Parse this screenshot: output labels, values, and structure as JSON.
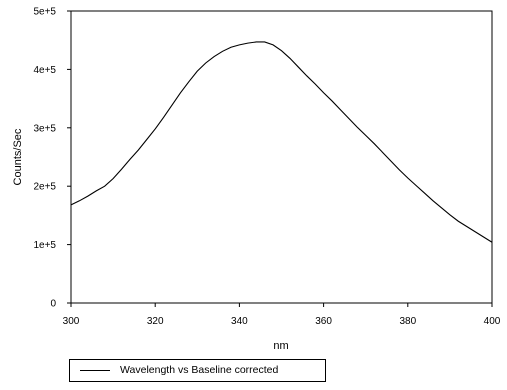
{
  "chart_data": {
    "type": "line",
    "title": "",
    "xlabel": "nm",
    "ylabel": "Counts/Sec",
    "xlim": [
      300,
      400
    ],
    "ylim": [
      0,
      500000
    ],
    "x_ticks": [
      300,
      320,
      340,
      360,
      380,
      400
    ],
    "x_tick_labels": [
      "300",
      "320",
      "340",
      "360",
      "380",
      "400"
    ],
    "y_ticks": [
      0,
      100000,
      200000,
      300000,
      400000,
      500000
    ],
    "y_tick_labels": [
      "0",
      "1e+5",
      "2e+5",
      "3e+5",
      "4e+5",
      "5e+5"
    ],
    "grid": false,
    "legend_position": "bottom-left",
    "series": [
      {
        "name": "Wavelength vs Baseline corrected",
        "color": "#000000",
        "x": [
          300,
          302,
          304,
          306,
          308,
          310,
          312,
          314,
          316,
          318,
          320,
          322,
          324,
          326,
          328,
          330,
          332,
          334,
          336,
          338,
          340,
          342,
          344,
          346,
          348,
          350,
          352,
          354,
          356,
          358,
          360,
          362,
          364,
          366,
          368,
          370,
          372,
          374,
          376,
          378,
          380,
          382,
          384,
          386,
          388,
          390,
          392,
          394,
          396,
          398,
          400
        ],
        "y": [
          168000,
          175000,
          183000,
          192000,
          200000,
          213000,
          229000,
          246000,
          262000,
          280000,
          298000,
          318000,
          339000,
          360000,
          379000,
          397000,
          411000,
          422000,
          431000,
          438000,
          442000,
          445000,
          447000,
          447000,
          442000,
          432000,
          419000,
          404000,
          389000,
          375000,
          360000,
          346000,
          331000,
          316000,
          301000,
          287000,
          273000,
          258000,
          243000,
          228000,
          214000,
          201000,
          188000,
          175000,
          163000,
          151000,
          140000,
          131000,
          122000,
          113000,
          104000
        ]
      }
    ]
  }
}
